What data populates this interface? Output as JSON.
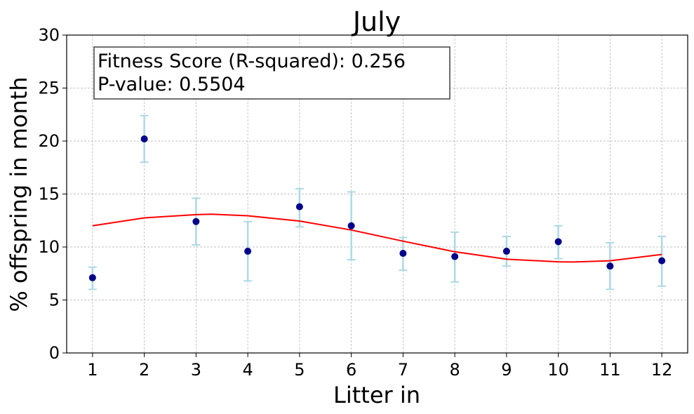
{
  "chart_data": {
    "type": "scatter",
    "title": "July",
    "xlabel": "Litter in",
    "ylabel": "% offspring in month",
    "xlim": [
      0.5,
      12.5
    ],
    "ylim": [
      0,
      30
    ],
    "xticks": [
      1,
      2,
      3,
      4,
      5,
      6,
      7,
      8,
      9,
      10,
      11,
      12
    ],
    "yticks": [
      0,
      5,
      10,
      15,
      20,
      25,
      30
    ],
    "grid": true,
    "annotation": {
      "line1": "Fitness Score (R-squared): 0.256",
      "line2": "P-value: 0.5504",
      "placement": "top-left"
    },
    "points": {
      "color": "#00008b",
      "x": [
        1,
        2,
        3,
        4,
        5,
        6,
        7,
        8,
        9,
        10,
        11,
        12
      ],
      "y": [
        7.1,
        20.2,
        12.4,
        9.6,
        13.8,
        12.0,
        9.4,
        9.1,
        9.6,
        10.5,
        8.2,
        8.7
      ],
      "error_low": [
        6.0,
        18.0,
        10.2,
        6.8,
        11.9,
        8.8,
        7.8,
        6.7,
        8.2,
        8.9,
        6.0,
        6.3
      ],
      "error_high": [
        8.1,
        22.4,
        14.6,
        12.4,
        15.5,
        15.2,
        10.9,
        11.4,
        11.0,
        12.0,
        10.4,
        11.0
      ],
      "error_color": "#add8e6"
    },
    "fit_curve": {
      "color": "#ff0000",
      "x": [
        1,
        2,
        3,
        3.3,
        4,
        5,
        6,
        7,
        8,
        9,
        10,
        10.3,
        11,
        12
      ],
      "y": [
        12.0,
        12.75,
        13.05,
        13.1,
        12.95,
        12.45,
        11.6,
        10.55,
        9.55,
        8.85,
        8.6,
        8.58,
        8.7,
        9.3
      ]
    }
  }
}
